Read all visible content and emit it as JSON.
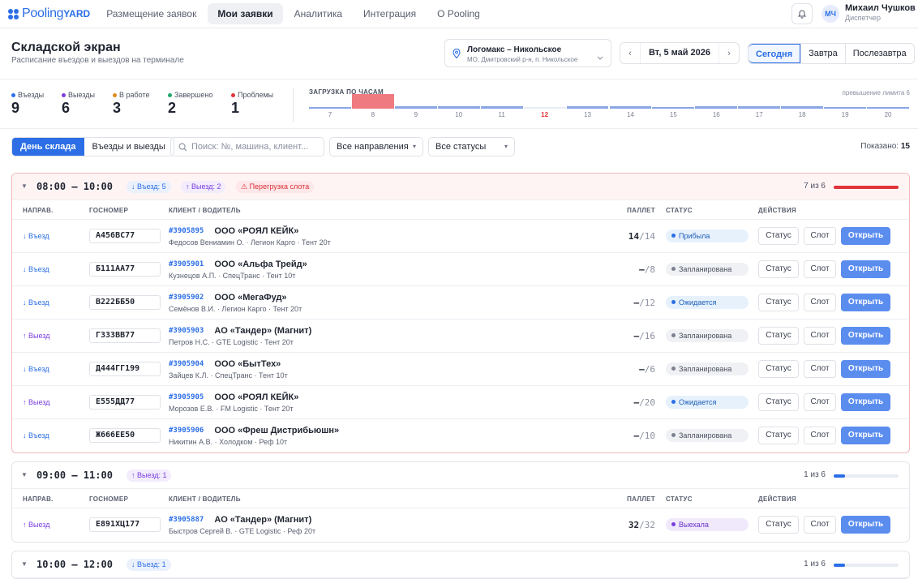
{
  "nav": {
    "logo_main": "Pooling",
    "logo_sub": "YARD",
    "items": [
      "Размещение заявок",
      "Мои заявки",
      "Аналитика",
      "Интеграция",
      "О Pooling"
    ],
    "active_index": 1,
    "user_initials": "МЧ",
    "user_name": "Михаил Чушков",
    "user_role": "Диспетчер"
  },
  "header": {
    "title": "Складской экран",
    "subtitle": "Расписание въездов и выездов на терминале",
    "location_name": "Логомакс – Никольское",
    "location_address": "МО, Дмитровский р-н, п. Никольское",
    "date": "Вт, 5 май 2026",
    "day_buttons": [
      "Сегодня",
      "Завтра",
      "Послезавтра"
    ],
    "day_active_index": 0
  },
  "stats": [
    {
      "label": "Въезды",
      "value": "9",
      "color": "#2b6ee6"
    },
    {
      "label": "Выезды",
      "value": "6",
      "color": "#7a3ee0"
    },
    {
      "label": "В работе",
      "value": "3",
      "color": "#e08a1e"
    },
    {
      "label": "Завершено",
      "value": "2",
      "color": "#1ea86a"
    },
    {
      "label": "Проблемы",
      "value": "1",
      "color": "#e0333a"
    }
  ],
  "load": {
    "title": "ЗАГРУЗКА ПО ЧАСАМ",
    "right_note": "превышение лимита 6",
    "current_hour": "12",
    "hours": [
      {
        "h": "7",
        "level": 0.05,
        "over": false
      },
      {
        "h": "8",
        "level": 1.0,
        "over": true
      },
      {
        "h": "9",
        "level": 0.14,
        "over": false
      },
      {
        "h": "10",
        "level": 0.14,
        "over": false
      },
      {
        "h": "11",
        "level": 0.14,
        "over": false
      },
      {
        "h": "12",
        "level": 0.0,
        "over": false
      },
      {
        "h": "13",
        "level": 0.14,
        "over": false
      },
      {
        "h": "14",
        "level": 0.14,
        "over": false
      },
      {
        "h": "15",
        "level": 0.05,
        "over": false
      },
      {
        "h": "16",
        "level": 0.14,
        "over": false
      },
      {
        "h": "17",
        "level": 0.14,
        "over": false
      },
      {
        "h": "18",
        "level": 0.14,
        "over": false
      },
      {
        "h": "19",
        "level": 0.05,
        "over": false
      },
      {
        "h": "20",
        "level": 0.05,
        "over": false
      }
    ]
  },
  "toolbar": {
    "views": [
      "День склада",
      "Въезды и выезды"
    ],
    "view_active_index": 0,
    "search_placeholder": "Поиск: №, машина, клиент...",
    "direction_filter": "Все направления",
    "status_filter": "Все статусы",
    "shown_label": "Показано:",
    "shown_count": "15"
  },
  "columns": {
    "dir": "НАПРАВ.",
    "plate": "ГОСНОМЕР",
    "client": "КЛИЕНТ / ВОДИТЕЛЬ",
    "pallets": "ПАЛЛЕТ",
    "status": "СТАТУС",
    "actions": "ДЕЙСТВИЯ"
  },
  "actions": {
    "status": "Статус",
    "slot": "Слот",
    "open": "Открыть"
  },
  "slots": [
    {
      "time": "08:00 – 10:00",
      "badges": [
        {
          "text": "↓ Въезд: 5",
          "kind": "in"
        },
        {
          "text": "↑ Выезд: 2",
          "kind": "out"
        },
        {
          "text": "⚠ Перегрузка слота",
          "kind": "warn"
        }
      ],
      "count_text": "7 из 6",
      "fill": 1.0,
      "fill_color": "#e0333a",
      "alert": true,
      "rows": [
        {
          "dir": "↓ Въезд",
          "kind": "in",
          "plate": "А456ВС77",
          "order": "#3905895",
          "client": "ООО «РОЯЛ КЕЙК»",
          "driver": "Федосов Вениамин О. · Легион Карго · Тент 20т",
          "pallets": "14",
          "pallets_total": "/14",
          "status": "Прибыла",
          "status_kind": "arr"
        },
        {
          "dir": "↓ Въезд",
          "kind": "in",
          "plate": "Б111АА77",
          "order": "#3905901",
          "client": "ООО «Альфа Трейд»",
          "driver": "Кузнецов А.П. · СпецТранс · Тент 10т",
          "pallets": "—",
          "pallets_total": "/8",
          "status": "Запланирована",
          "status_kind": "plan"
        },
        {
          "dir": "↓ Въезд",
          "kind": "in",
          "plate": "В222ББ50",
          "order": "#3905902",
          "client": "ООО «МегаФуд»",
          "driver": "Семёнов В.И. · Легион Карго · Тент 20т",
          "pallets": "—",
          "pallets_total": "/12",
          "status": "Ожидается",
          "status_kind": "wait"
        },
        {
          "dir": "↑ Выезд",
          "kind": "out",
          "plate": "Г333ВВ77",
          "order": "#3905903",
          "client": "АО «Тандер» (Магнит)",
          "driver": "Петров Н.С. · GTE Logistic · Тент 20т",
          "pallets": "—",
          "pallets_total": "/16",
          "status": "Запланирована",
          "status_kind": "plan"
        },
        {
          "dir": "↓ Въезд",
          "kind": "in",
          "plate": "Д444ГГ199",
          "order": "#3905904",
          "client": "ООО «БытТех»",
          "driver": "Зайцев К.Л. · СпецТранс · Тент 10т",
          "pallets": "—",
          "pallets_total": "/6",
          "status": "Запланирована",
          "status_kind": "plan"
        },
        {
          "dir": "↑ Выезд",
          "kind": "out",
          "plate": "Е555ДД77",
          "order": "#3905905",
          "client": "ООО «РОЯЛ КЕЙК»",
          "driver": "Морозов Е.В. · FM Logistic · Тент 20т",
          "pallets": "—",
          "pallets_total": "/20",
          "status": "Ожидается",
          "status_kind": "wait"
        },
        {
          "dir": "↓ Въезд",
          "kind": "in",
          "plate": "Ж666ЕЕ50",
          "order": "#3905906",
          "client": "ООО «Фреш Дистрибьюшн»",
          "driver": "Никитин А.В. · Холодком · Реф 10т",
          "pallets": "—",
          "pallets_total": "/10",
          "status": "Запланирована",
          "status_kind": "plan"
        }
      ]
    },
    {
      "time": "09:00 – 11:00",
      "badges": [
        {
          "text": "↑ Выезд: 1",
          "kind": "out"
        }
      ],
      "count_text": "1 из 6",
      "fill": 0.17,
      "fill_color": "#2b6ee6",
      "alert": false,
      "rows": [
        {
          "dir": "↑ Выезд",
          "kind": "out",
          "plate": "Е891ХЦ177",
          "order": "#3905887",
          "client": "АО «Тандер» (Магнит)",
          "driver": "Быстров Сергей В. · GTE Logistic · Реф 20т",
          "pallets": "32",
          "pallets_total": "/32",
          "status": "Выехала",
          "status_kind": "left"
        }
      ]
    },
    {
      "time": "10:00 – 12:00",
      "badges": [
        {
          "text": "↓ Въезд: 1",
          "kind": "in"
        }
      ],
      "count_text": "1 из 6",
      "fill": 0.17,
      "fill_color": "#2b6ee6",
      "alert": false,
      "rows": []
    }
  ]
}
